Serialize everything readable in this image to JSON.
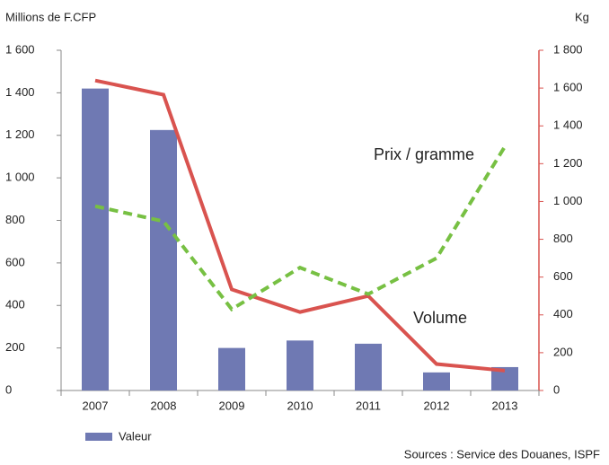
{
  "chart_data": {
    "type": "bar-line",
    "y_label": "Millions de F.CFP",
    "y2_label": "Kg",
    "source": "Sources : Service des Douanes, ISPF",
    "categories": [
      "2007",
      "2008",
      "2009",
      "2010",
      "2011",
      "2012",
      "2013"
    ],
    "ylim": [
      0,
      1600
    ],
    "yticks": [
      0,
      200,
      400,
      600,
      800,
      {
        "value": 1000,
        "label": "1 000"
      },
      {
        "value": 1200,
        "label": "1 200"
      },
      {
        "value": 1400,
        "label": "1 400"
      },
      {
        "value": 1600,
        "label": "1 600"
      }
    ],
    "y2lim": [
      0,
      1800
    ],
    "y2ticks": [
      0,
      200,
      400,
      600,
      800,
      {
        "value": 1000,
        "label": "1 000"
      },
      {
        "value": 1200,
        "label": "1 200"
      },
      {
        "value": 1400,
        "label": "1 400"
      },
      {
        "value": 1600,
        "label": "1 600"
      },
      {
        "value": 1800,
        "label": "1 800"
      }
    ],
    "y2_color": "#d9534f",
    "series": [
      {
        "name": "Valeur",
        "type": "bar",
        "color": "#6f79b3",
        "values": [
          1420,
          1225,
          200,
          235,
          220,
          85,
          110
        ]
      },
      {
        "name": "Volume",
        "type": "line",
        "axis": "y2",
        "color": "#d9534f",
        "values": [
          1640,
          1565,
          535,
          415,
          500,
          140,
          105
        ]
      },
      {
        "name": "Prix / gramme",
        "type": "dashed-line",
        "axis": "y2",
        "color": "#77c043",
        "values": [
          975,
          895,
          430,
          650,
          510,
          700,
          1290
        ]
      }
    ]
  }
}
